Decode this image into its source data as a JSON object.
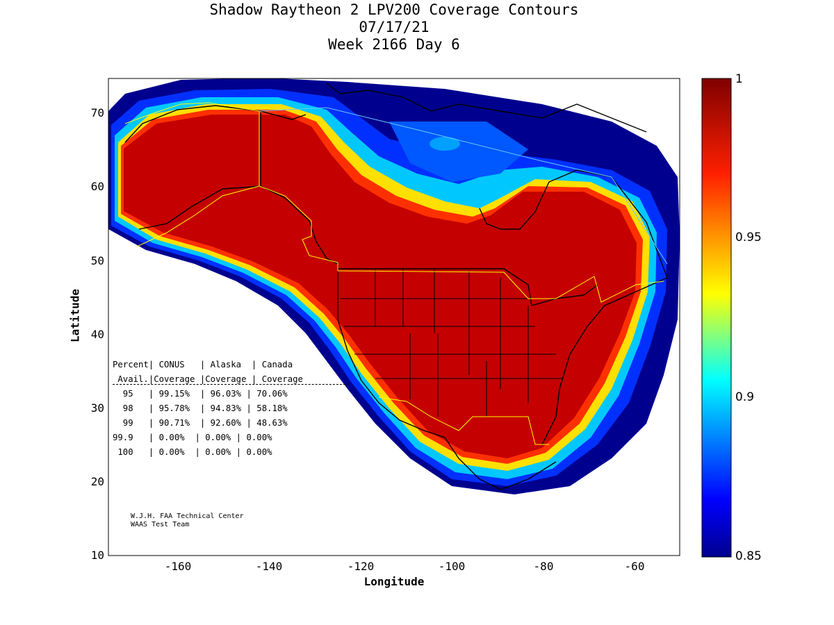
{
  "title": {
    "line1": "Shadow Raytheon 2 LPV200 Coverage Contours",
    "line2": "07/17/21",
    "line3": "Week 2166 Day 6"
  },
  "axes": {
    "xlabel": "Longitude",
    "ylabel": "Latitude",
    "x_ticks": [
      "-160",
      "-140",
      "-120",
      "-100",
      "-80",
      "-60"
    ],
    "y_ticks": [
      "70",
      "60",
      "50",
      "40",
      "30",
      "20",
      "10"
    ],
    "xlim": [
      -175,
      -50
    ],
    "ylim": [
      10,
      75
    ]
  },
  "colorbar": {
    "ticks": [
      "1",
      "0.95",
      "0.9",
      "0.85"
    ],
    "range": [
      0.85,
      1
    ],
    "colormap": "jet"
  },
  "coverage_table": {
    "header1": "Percent| CONUS   | Alaska  | Canada",
    "header2": " Avail.|Coverage |Coverage | Coverage",
    "rows": [
      "  95   | 99.15%  | 96.03% | 70.06%",
      "  98   | 95.78%  | 94.83% | 58.18%",
      "  99   | 90.71%  | 92.60% | 48.63%",
      "99.9   | 0.00%  | 0.00% | 0.00%",
      " 100   | 0.00%  | 0.00% | 0.00%"
    ]
  },
  "credits": {
    "line1": "W.J.H. FAA Technical Center",
    "line2": "WAAS Test Team"
  },
  "colors": {
    "full_coverage": "#c40000",
    "low_coverage": "#000090",
    "service_boundary": "#ffff00",
    "boundary_alt": "#66ccff"
  }
}
